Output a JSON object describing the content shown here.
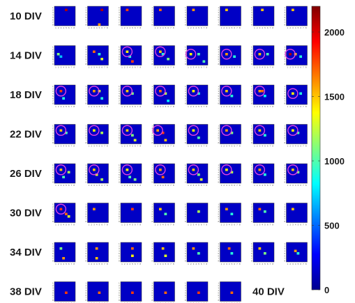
{
  "chart_data": {
    "type": "heatmap",
    "rows": [
      "10 DIV",
      "14 DIV",
      "18 DIV",
      "22 DIV",
      "26 DIV",
      "30 DIV",
      "34 DIV",
      "38 DIV"
    ],
    "extra_label": "40 DIV",
    "columns_per_row": 8,
    "last_row_columns": 6,
    "grid_size": 8,
    "colorbar": {
      "min": 0,
      "max": 2200,
      "ticks": [
        0,
        500,
        1000,
        1500,
        2000
      ]
    },
    "axis_tick_labels": [
      "1",
      "2",
      "3",
      "4",
      "5",
      "6",
      "7",
      "8"
    ],
    "background_value": 150,
    "hotspots": [
      [
        [
          [
            4,
            1,
            2100
          ]
        ],
        [
          [
            5,
            1,
            2100
          ],
          [
            4,
            7,
            1600
          ]
        ],
        [
          [
            2,
            1,
            1800
          ]
        ],
        [
          [
            2,
            1,
            1700
          ]
        ],
        [
          [
            2,
            1,
            1600
          ]
        ],
        [
          [
            2,
            1,
            1500
          ]
        ],
        [
          [
            3,
            1,
            1500
          ]
        ],
        [
          [
            2,
            1,
            1500
          ]
        ]
      ],
      [
        [
          [
            1,
            3,
            1100
          ],
          [
            2,
            4,
            700
          ]
        ],
        [
          [
            2,
            2,
            1700
          ],
          [
            4,
            3,
            900
          ],
          [
            5,
            5,
            1300
          ]
        ],
        [
          [
            2,
            2,
            1400
          ],
          [
            3,
            4,
            900
          ],
          [
            4,
            6,
            1800
          ]
        ],
        [
          [
            2,
            2,
            1500
          ],
          [
            3,
            3,
            900
          ],
          [
            5,
            5,
            1100
          ]
        ],
        [
          [
            1,
            3,
            1400
          ],
          [
            4,
            3,
            1000
          ],
          [
            6,
            6,
            1000
          ]
        ],
        [
          [
            2,
            3,
            1600
          ],
          [
            5,
            4,
            900
          ]
        ],
        [
          [
            2,
            3,
            1500
          ],
          [
            5,
            3,
            1000
          ]
        ],
        [
          [
            1,
            3,
            2100
          ],
          [
            3,
            3,
            1500
          ],
          [
            5,
            4,
            900
          ]
        ]
      ],
      [
        [
          [
            2,
            2,
            1800
          ],
          [
            3,
            5,
            900
          ]
        ],
        [
          [
            2,
            2,
            1600
          ],
          [
            4,
            2,
            1300
          ],
          [
            5,
            5,
            900
          ]
        ],
        [
          [
            2,
            2,
            1500
          ],
          [
            4,
            3,
            1100
          ]
        ],
        [
          [
            2,
            2,
            1700
          ],
          [
            4,
            3,
            1200
          ],
          [
            5,
            6,
            800
          ]
        ],
        [
          [
            2,
            2,
            1400
          ],
          [
            4,
            3,
            900
          ]
        ],
        [
          [
            2,
            2,
            1500
          ],
          [
            4,
            4,
            900
          ]
        ],
        [
          [
            2,
            2,
            1600
          ],
          [
            3,
            2,
            1700
          ],
          [
            4,
            4,
            800
          ]
        ],
        [
          [
            2,
            3,
            1400
          ],
          [
            5,
            3,
            900
          ]
        ]
      ],
      [
        [
          [
            2,
            2,
            1500
          ],
          [
            4,
            3,
            1000
          ]
        ],
        [
          [
            2,
            2,
            1400
          ],
          [
            5,
            3,
            1200
          ]
        ],
        [
          [
            2,
            2,
            1500
          ],
          [
            4,
            4,
            1100
          ],
          [
            5,
            6,
            1300
          ]
        ],
        [
          [
            1,
            2,
            1600
          ],
          [
            3,
            3,
            1800
          ],
          [
            4,
            6,
            1500
          ]
        ],
        [
          [
            2,
            2,
            1400
          ],
          [
            4,
            5,
            1000
          ]
        ],
        [
          [
            2,
            2,
            1600
          ],
          [
            4,
            3,
            1100
          ]
        ],
        [
          [
            2,
            2,
            1500
          ],
          [
            4,
            4,
            900
          ]
        ],
        [
          [
            2,
            2,
            1400
          ],
          [
            4,
            3,
            1000
          ]
        ]
      ],
      [
        [
          [
            2,
            2,
            1500
          ],
          [
            3,
            5,
            1000
          ],
          [
            5,
            3,
            1200
          ]
        ],
        [
          [
            2,
            2,
            1500
          ],
          [
            3,
            4,
            1300
          ],
          [
            5,
            6,
            1200
          ]
        ],
        [
          [
            2,
            2,
            1400
          ],
          [
            3,
            5,
            1000
          ],
          [
            5,
            6,
            1100
          ]
        ],
        [
          [
            2,
            2,
            1600
          ],
          [
            3,
            5,
            1700
          ]
        ],
        [
          [
            2,
            2,
            1500
          ],
          [
            4,
            4,
            1100
          ],
          [
            5,
            6,
            1300
          ]
        ],
        [
          [
            2,
            2,
            1400
          ],
          [
            4,
            3,
            1200
          ]
        ],
        [
          [
            2,
            2,
            1600
          ],
          [
            4,
            4,
            900
          ]
        ],
        [
          [
            2,
            2,
            1500
          ],
          [
            4,
            3,
            1100
          ]
        ]
      ],
      [
        [
          [
            2,
            2,
            1800
          ],
          [
            4,
            4,
            1700
          ],
          [
            5,
            5,
            1300
          ]
        ],
        [
          [
            2,
            2,
            1600
          ]
        ],
        [
          [
            4,
            2,
            1800
          ]
        ],
        [
          [
            2,
            2,
            1500
          ],
          [
            4,
            4,
            1000
          ]
        ],
        [
          [
            4,
            3,
            1200
          ]
        ],
        [
          [
            2,
            2,
            1600
          ],
          [
            4,
            4,
            900
          ]
        ],
        [
          [
            2,
            2,
            1700
          ],
          [
            4,
            3,
            1000
          ]
        ],
        [
          [
            2,
            2,
            1500
          ]
        ]
      ],
      [
        [
          [
            2,
            2,
            1100
          ],
          [
            3,
            6,
            1600
          ]
        ],
        [
          [
            3,
            2,
            1600
          ],
          [
            3,
            6,
            1500
          ]
        ],
        [
          [
            4,
            2,
            1700
          ],
          [
            4,
            5,
            1400
          ]
        ],
        [
          [
            3,
            2,
            1500
          ],
          [
            4,
            5,
            1300
          ]
        ],
        [
          [
            2,
            2,
            1600
          ],
          [
            4,
            4,
            1000
          ]
        ],
        [
          [
            3,
            2,
            1700
          ],
          [
            4,
            4,
            900
          ]
        ],
        [
          [
            2,
            2,
            1500
          ],
          [
            4,
            4,
            1100
          ]
        ],
        [
          [
            3,
            3,
            1600
          ],
          [
            4,
            4,
            900
          ]
        ]
      ],
      [
        [
          [
            4,
            4,
            1800
          ]
        ],
        [
          [
            4,
            4,
            1700
          ]
        ],
        [
          [
            4,
            4,
            1800
          ]
        ],
        [
          [
            4,
            4,
            1700
          ]
        ],
        [
          [
            4,
            4,
            1800
          ]
        ],
        [
          [
            4,
            4,
            1700
          ]
        ]
      ]
    ],
    "circled": [
      [],
      [
        2,
        3,
        4,
        5,
        6,
        7
      ],
      [
        0,
        1,
        2,
        3,
        4,
        5,
        6,
        7
      ],
      [
        0,
        1,
        2,
        3,
        4,
        5,
        6,
        7
      ],
      [
        0,
        1,
        2,
        3,
        4,
        5,
        6,
        7
      ],
      [
        0
      ],
      [],
      []
    ],
    "circle_color": "#e040e0",
    "colormap": "jet"
  }
}
